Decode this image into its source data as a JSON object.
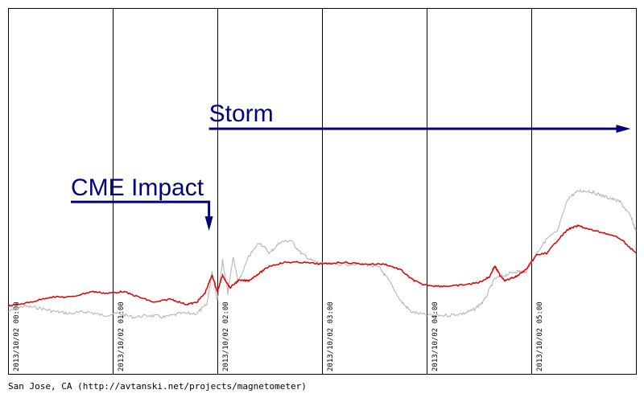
{
  "chart_data": {
    "type": "line",
    "x_tick_labels": [
      "2013/10/02  00:00",
      "2013/10/02  01:00",
      "2013/10/02  02:00",
      "2013/10/02  03:00",
      "2013/10/02  04:00",
      "2013/10/02  05:00"
    ],
    "x_range_hours": [
      0,
      6
    ],
    "ylim": [
      0,
      1
    ],
    "grid": "vertical",
    "annotations": {
      "cme": {
        "text": "CME Impact",
        "x_start": 0.6,
        "x_end": 1.92,
        "level": 0.47
      },
      "storm": {
        "text": "Storm",
        "x_start": 1.92,
        "x_end": 5.95,
        "level": 0.67
      }
    },
    "series": [
      {
        "color": "#dd0000",
        "points": [
          [
            0.0,
            0.185
          ],
          [
            0.2,
            0.195
          ],
          [
            0.4,
            0.21
          ],
          [
            0.6,
            0.21
          ],
          [
            0.8,
            0.225
          ],
          [
            0.95,
            0.22
          ],
          [
            1.1,
            0.225
          ],
          [
            1.25,
            0.21
          ],
          [
            1.4,
            0.195
          ],
          [
            1.55,
            0.205
          ],
          [
            1.7,
            0.19
          ],
          [
            1.8,
            0.195
          ],
          [
            1.88,
            0.22
          ],
          [
            1.95,
            0.27
          ],
          [
            2.0,
            0.225
          ],
          [
            2.05,
            0.27
          ],
          [
            2.12,
            0.235
          ],
          [
            2.2,
            0.255
          ],
          [
            2.3,
            0.255
          ],
          [
            2.4,
            0.275
          ],
          [
            2.5,
            0.295
          ],
          [
            2.65,
            0.305
          ],
          [
            2.8,
            0.305
          ],
          [
            3.0,
            0.3
          ],
          [
            3.2,
            0.305
          ],
          [
            3.4,
            0.3
          ],
          [
            3.6,
            0.3
          ],
          [
            3.75,
            0.285
          ],
          [
            3.85,
            0.26
          ],
          [
            3.95,
            0.245
          ],
          [
            4.1,
            0.24
          ],
          [
            4.25,
            0.24
          ],
          [
            4.4,
            0.245
          ],
          [
            4.5,
            0.25
          ],
          [
            4.6,
            0.265
          ],
          [
            4.65,
            0.295
          ],
          [
            4.7,
            0.27
          ],
          [
            4.75,
            0.255
          ],
          [
            4.85,
            0.265
          ],
          [
            4.95,
            0.285
          ],
          [
            5.05,
            0.325
          ],
          [
            5.15,
            0.33
          ],
          [
            5.25,
            0.365
          ],
          [
            5.35,
            0.395
          ],
          [
            5.45,
            0.405
          ],
          [
            5.55,
            0.395
          ],
          [
            5.7,
            0.385
          ],
          [
            5.85,
            0.37
          ],
          [
            6.0,
            0.33
          ]
        ]
      },
      {
        "color": "#b0b0b0",
        "points": [
          [
            0.0,
            0.17
          ],
          [
            0.15,
            0.185
          ],
          [
            0.3,
            0.18
          ],
          [
            0.45,
            0.17
          ],
          [
            0.6,
            0.165
          ],
          [
            0.75,
            0.17
          ],
          [
            0.9,
            0.16
          ],
          [
            1.05,
            0.165
          ],
          [
            1.2,
            0.155
          ],
          [
            1.35,
            0.16
          ],
          [
            1.5,
            0.155
          ],
          [
            1.65,
            0.165
          ],
          [
            1.8,
            0.165
          ],
          [
            1.9,
            0.19
          ],
          [
            1.95,
            0.28
          ],
          [
            2.0,
            0.2
          ],
          [
            2.05,
            0.31
          ],
          [
            2.1,
            0.22
          ],
          [
            2.15,
            0.32
          ],
          [
            2.2,
            0.25
          ],
          [
            2.3,
            0.32
          ],
          [
            2.4,
            0.36
          ],
          [
            2.5,
            0.33
          ],
          [
            2.6,
            0.36
          ],
          [
            2.7,
            0.365
          ],
          [
            2.8,
            0.33
          ],
          [
            2.9,
            0.31
          ],
          [
            3.0,
            0.3
          ],
          [
            3.2,
            0.3
          ],
          [
            3.4,
            0.3
          ],
          [
            3.55,
            0.29
          ],
          [
            3.65,
            0.25
          ],
          [
            3.75,
            0.2
          ],
          [
            3.85,
            0.17
          ],
          [
            4.0,
            0.16
          ],
          [
            4.2,
            0.16
          ],
          [
            4.35,
            0.165
          ],
          [
            4.45,
            0.175
          ],
          [
            4.55,
            0.2
          ],
          [
            4.65,
            0.26
          ],
          [
            4.75,
            0.27
          ],
          [
            4.85,
            0.28
          ],
          [
            4.95,
            0.28
          ],
          [
            5.05,
            0.33
          ],
          [
            5.15,
            0.37
          ],
          [
            5.25,
            0.39
          ],
          [
            5.35,
            0.48
          ],
          [
            5.45,
            0.5
          ],
          [
            5.55,
            0.5
          ],
          [
            5.65,
            0.49
          ],
          [
            5.75,
            0.48
          ],
          [
            5.85,
            0.47
          ],
          [
            5.95,
            0.43
          ],
          [
            6.0,
            0.39
          ]
        ]
      }
    ]
  },
  "footer": "San Jose, CA (http://avtanski.net/projects/magnetometer)"
}
